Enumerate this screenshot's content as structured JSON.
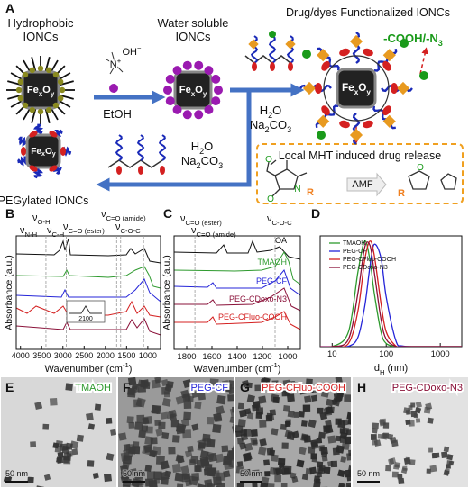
{
  "panel_a": {
    "label": "A",
    "hydrophobic": [
      "Hydrophobic",
      "IONCs"
    ],
    "water_soluble": [
      "Water soluble",
      "IONCs"
    ],
    "functionalized": "Drug/dyes Functionalized IONCs",
    "end_groups": {
      "main": "-COOH/-N",
      "sub": "3"
    },
    "core": {
      "fe": "Fe",
      "x": "x",
      "o": "O",
      "y": "y"
    },
    "tmaoh": {
      "n": "N",
      "plus": "+",
      "oh": "OH",
      "minus": "−"
    },
    "etoh": "EtOH",
    "solvent_right": {
      "h": "H",
      "h_sub": "2",
      "o": "O",
      "na": "Na",
      "na_sub": "2",
      "co": "CO",
      "co_sub": "3"
    },
    "solvent_left": {
      "h": "H",
      "h_sub": "2",
      "o": "O",
      "na": "Na",
      "na_sub": "2",
      "co": "CO",
      "co_sub": "3"
    },
    "pegylated": "PEGylated IONCs",
    "release": {
      "title": "Local MHT induced drug release",
      "amf": "AMF",
      "atoms": {
        "o1": "O",
        "o2": "O",
        "n": "N",
        "r": "R",
        "o3": "O",
        "r2": "R"
      }
    }
  },
  "panel_b": {
    "label": "B",
    "xlim": [
      4100,
      700
    ],
    "xticks": [
      4000,
      3500,
      3000,
      2500,
      2000,
      1500,
      1000
    ],
    "x_label": {
      "main": "Wavenumber (cm",
      "sup": "-1",
      "end": ")"
    },
    "y_label": "Absorbance (a.u.)",
    "bands": [
      3400,
      3280,
      2920,
      1735,
      1640,
      1100
    ],
    "annotations": [
      {
        "nu": "ν",
        "sub": "O-H"
      },
      {
        "nu": "ν",
        "sub": "N-H"
      },
      {
        "nu": "ν",
        "sub": "C-H"
      },
      {
        "nu": "ν",
        "sub": "C=O (ester)"
      },
      {
        "nu": "ν",
        "sub": "C=O (amide)"
      },
      {
        "nu": "ν",
        "sub": "C-O-C"
      }
    ],
    "inset": "2100"
  },
  "panel_c": {
    "label": "C",
    "xlim": [
      1900,
      900
    ],
    "xticks": [
      1800,
      1600,
      1400,
      1200,
      1000
    ],
    "x_label": {
      "main": "Wavenumber (cm",
      "sup": "-1",
      "end": ")"
    },
    "y_label": "Absorbance (a.u.)",
    "bands": [
      1735,
      1640,
      1100
    ],
    "annotations": [
      {
        "nu": "ν",
        "sub": "C=O (ester)"
      },
      {
        "nu": "ν",
        "sub": "C=O (amide)"
      },
      {
        "nu": "ν",
        "sub": "C-O-C"
      }
    ],
    "traces": [
      "OA",
      "TMAOH",
      "PEG-CF",
      "PEG-CDoxo-N3",
      "PEG-CFluo-COOH"
    ]
  },
  "chart_data": {
    "type": "line",
    "label": "D",
    "log_x": true,
    "legend": "upper-left",
    "x_label": {
      "main": "d",
      "sub": "H",
      "unit": " (nm)"
    },
    "xlim": [
      6,
      2500
    ],
    "xticks": [
      10,
      100,
      1000
    ],
    "ylim": [
      0,
      1.05
    ],
    "x": [
      5,
      10,
      20,
      30,
      40,
      50,
      60,
      80,
      100,
      150,
      200,
      400,
      1000,
      5000
    ],
    "series": [
      {
        "name": "TMAOH",
        "color": "#2e9a2e",
        "values": [
          0,
          0.0004,
          0.14,
          0.71,
          1,
          0.82,
          0.51,
          0.14,
          0.03,
          0.001,
          0,
          0,
          0,
          0
        ]
      },
      {
        "name": "PEG-CF",
        "color": "#2424d8",
        "values": [
          0,
          0,
          0.003,
          0.09,
          0.38,
          0.76,
          0.97,
          0.84,
          0.47,
          0.06,
          0.006,
          0,
          0,
          0
        ]
      },
      {
        "name": "PEG-CFluo-COOH",
        "color": "#d42020",
        "values": [
          0,
          0,
          0.03,
          0.34,
          0.82,
          1,
          0.87,
          0.41,
          0.14,
          0.007,
          0,
          0,
          0,
          0
        ]
      },
      {
        "name": "PEG-CDoxo-N3",
        "color": "#8a1038",
        "values": [
          0,
          0,
          0.07,
          0.51,
          0.94,
          0.96,
          0.71,
          0.26,
          0.07,
          0.003,
          0,
          0,
          0,
          0
        ]
      }
    ]
  },
  "tem": [
    {
      "label": "E",
      "name": "TMAOH",
      "scale": "50 nm"
    },
    {
      "label": "F",
      "name": "PEG-CF",
      "scale": "50 nm"
    },
    {
      "label": "G",
      "name": "PEG-CFluo-COOH",
      "scale": "50 nm"
    },
    {
      "label": "H",
      "name": "PEG-CDoxo-N3",
      "scale": "50 nm"
    }
  ]
}
